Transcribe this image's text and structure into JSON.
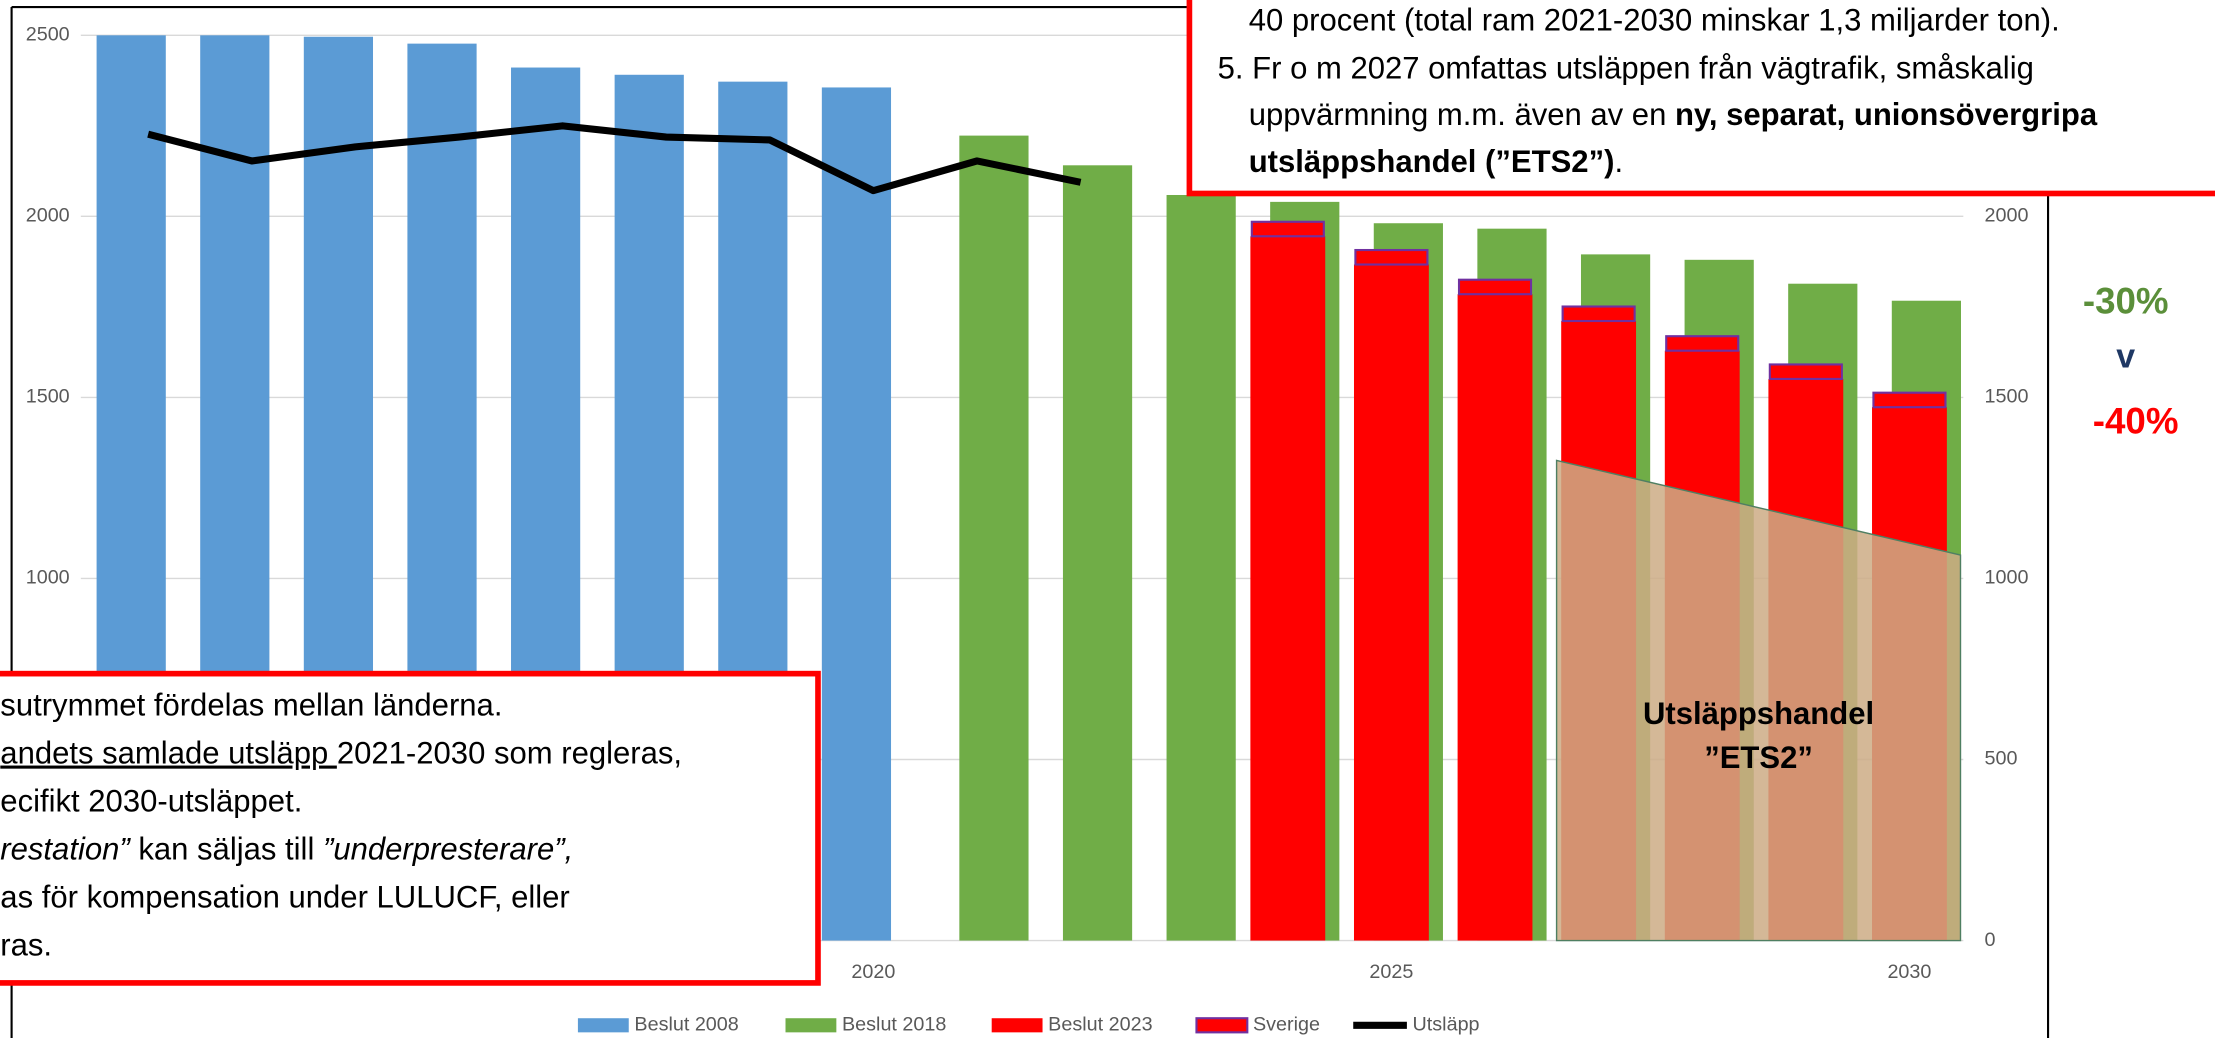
{
  "chart_data": {
    "type": "bar",
    "xlim": [
      2012.35,
      2030.52
    ],
    "xticks": [
      2020,
      2025,
      2030
    ],
    "ylim": [
      0,
      2500
    ],
    "yticks": [
      0,
      500,
      1000,
      1500,
      2000,
      2500
    ],
    "y2lim": [
      0,
      2500
    ],
    "y2ticks": [
      0,
      500,
      1000,
      1500,
      2000
    ],
    "grid": true,
    "legend": "bottom",
    "series": [
      {
        "name": "Beslut 2008",
        "type": "bar",
        "color": "#5b9bd5",
        "x": [
          2013,
          2014,
          2015,
          2016,
          2017,
          2018,
          2019,
          2020
        ],
        "values": [
          2500,
          2500,
          2496,
          2477,
          2411,
          2391,
          2372,
          2356
        ]
      },
      {
        "name": "Beslut 2018",
        "type": "bar",
        "color": "#70ad47",
        "x": [
          2021,
          2022,
          2023,
          2024,
          2025,
          2026,
          2027,
          2028,
          2029,
          2030
        ],
        "values": [
          2223,
          2141,
          2059,
          2040,
          1981,
          1966,
          1895,
          1880,
          1814,
          1767
        ]
      },
      {
        "name": "Beslut 2023",
        "type": "bar",
        "color": "#ff0000",
        "x": [
          2024,
          2025,
          2026,
          2027,
          2028,
          2029,
          2030
        ],
        "values": [
          1945,
          1867,
          1785,
          1711,
          1629,
          1551,
          1473
        ]
      },
      {
        "name": "Sverige",
        "type": "stacked",
        "color": "#7030a0",
        "x": [
          2024,
          2025,
          2026,
          2027,
          2028,
          2029,
          2030
        ],
        "values": [
          40,
          40,
          40,
          40,
          40,
          40,
          40
        ]
      },
      {
        "name": "Utsläpp",
        "type": "line",
        "color": "#000000",
        "x": [
          2013,
          2014,
          2015,
          2016,
          2017,
          2018,
          2019,
          2020,
          2021,
          2022
        ],
        "values": [
          2227,
          2153,
          2192,
          2219,
          2250,
          2219,
          2211,
          2071,
          2153,
          2094
        ]
      }
    ],
    "annotations": {
      "ets2": [
        "Utsläppshandel",
        "”ETS2”"
      ],
      "minus30": "-30%",
      "vs": "v",
      "minus40": "-40%"
    },
    "top_box": [
      [
        {
          "text": "40 procent (total ram 2021-2030 minskar 1,3 miljarder ton)."
        }
      ],
      [
        {
          "text": "5. Fr o m 2027 omfattas utsläppen från vägtrafik, småskalig"
        }
      ],
      [
        {
          "text": "uppvärmning m.m. även av en "
        },
        {
          "text": "ny, separat, unionsövergripa",
          "style": "bold"
        }
      ],
      [
        {
          "text": "utsläppshandel (”ETS2”)",
          "style": "bold"
        },
        {
          "text": "."
        }
      ]
    ],
    "bottom_box": [
      [
        {
          "text": "sutrymmet fördelas mellan länderna."
        }
      ],
      [
        {
          "text": "andets samlade utsläpp ",
          "style": "underline"
        },
        {
          "text": "2021-2030 som regleras,"
        }
      ],
      [
        {
          "text": "ecifikt 2030-utsläppet."
        }
      ],
      [
        {
          "text": "restation”",
          "style": "italic"
        },
        {
          "text": " kan säljas till "
        },
        {
          "text": "”underpresterare”,",
          "style": "italic"
        }
      ],
      [
        {
          "text": "as för kompensation under LULUCF, eller"
        }
      ],
      [
        {
          "text": "ras."
        }
      ]
    ]
  }
}
